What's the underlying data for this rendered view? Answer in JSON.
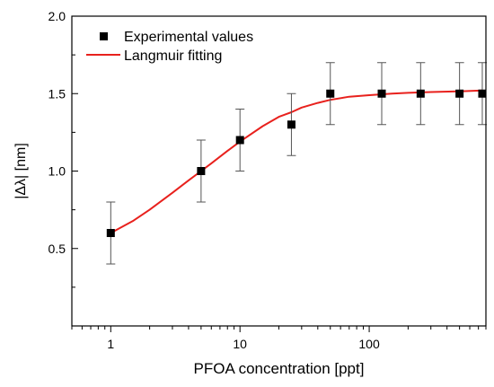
{
  "chart_data": {
    "type": "scatter",
    "xlabel": "PFOA concentration [ppt]",
    "ylabel": "|Δλ| [nm]",
    "xscale": "log",
    "xlim": [
      0.5,
      800
    ],
    "ylim": [
      0.0,
      2.0
    ],
    "x_ticks": [
      1,
      10,
      100
    ],
    "x_tick_labels": [
      "1",
      "10",
      "100"
    ],
    "y_ticks": [
      0.5,
      1.0,
      1.5,
      2.0
    ],
    "y_tick_labels": [
      "0.5",
      "1.0",
      "1.5",
      "2.0"
    ],
    "legend_position": "top-left",
    "series": [
      {
        "name": "Experimental values",
        "kind": "points-with-errorbars",
        "color": "#000000",
        "x": [
          1,
          5,
          10,
          25,
          50,
          125,
          250,
          500,
          750
        ],
        "y": [
          0.6,
          1.0,
          1.2,
          1.3,
          1.5,
          1.5,
          1.5,
          1.5,
          1.5
        ],
        "yerr": [
          0.2,
          0.2,
          0.2,
          0.2,
          0.2,
          0.2,
          0.2,
          0.2,
          0.2
        ]
      },
      {
        "name": "Langmuir fitting",
        "kind": "line",
        "color": "#e8211d",
        "x": [
          1,
          1.5,
          2,
          3,
          4,
          5,
          6,
          8,
          10,
          15,
          20,
          25,
          30,
          40,
          50,
          70,
          100,
          150,
          200,
          300,
          500,
          750
        ],
        "y": [
          0.6,
          0.68,
          0.75,
          0.86,
          0.94,
          1.0,
          1.05,
          1.13,
          1.19,
          1.29,
          1.35,
          1.38,
          1.41,
          1.44,
          1.46,
          1.48,
          1.49,
          1.5,
          1.505,
          1.51,
          1.515,
          1.52
        ]
      }
    ]
  }
}
